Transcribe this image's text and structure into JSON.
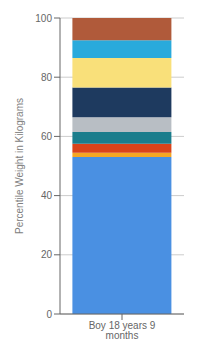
{
  "chart_data": {
    "type": "bar",
    "stacked": true,
    "categories": [
      "Boy 18 years 9 months"
    ],
    "series": [
      {
        "color": "#4a90e2",
        "values": [
          53.0
        ]
      },
      {
        "color": "#f5a623",
        "values": [
          1.5
        ]
      },
      {
        "color": "#d9431a",
        "values": [
          3.0
        ]
      },
      {
        "color": "#1a7d8c",
        "values": [
          4.0
        ]
      },
      {
        "color": "#b8bec4",
        "values": [
          5.0
        ]
      },
      {
        "color": "#1e3a5f",
        "values": [
          10.0
        ]
      },
      {
        "color": "#f9e07a",
        "values": [
          10.0
        ]
      },
      {
        "color": "#29aadc",
        "values": [
          6.0
        ]
      },
      {
        "color": "#b05a3a",
        "values": [
          7.5
        ]
      }
    ],
    "ylabel": "Percentile Weight in Kilograms",
    "ylim": [
      0,
      100
    ],
    "yticks": [
      0,
      20,
      40,
      60,
      80,
      100
    ],
    "grid": true
  }
}
